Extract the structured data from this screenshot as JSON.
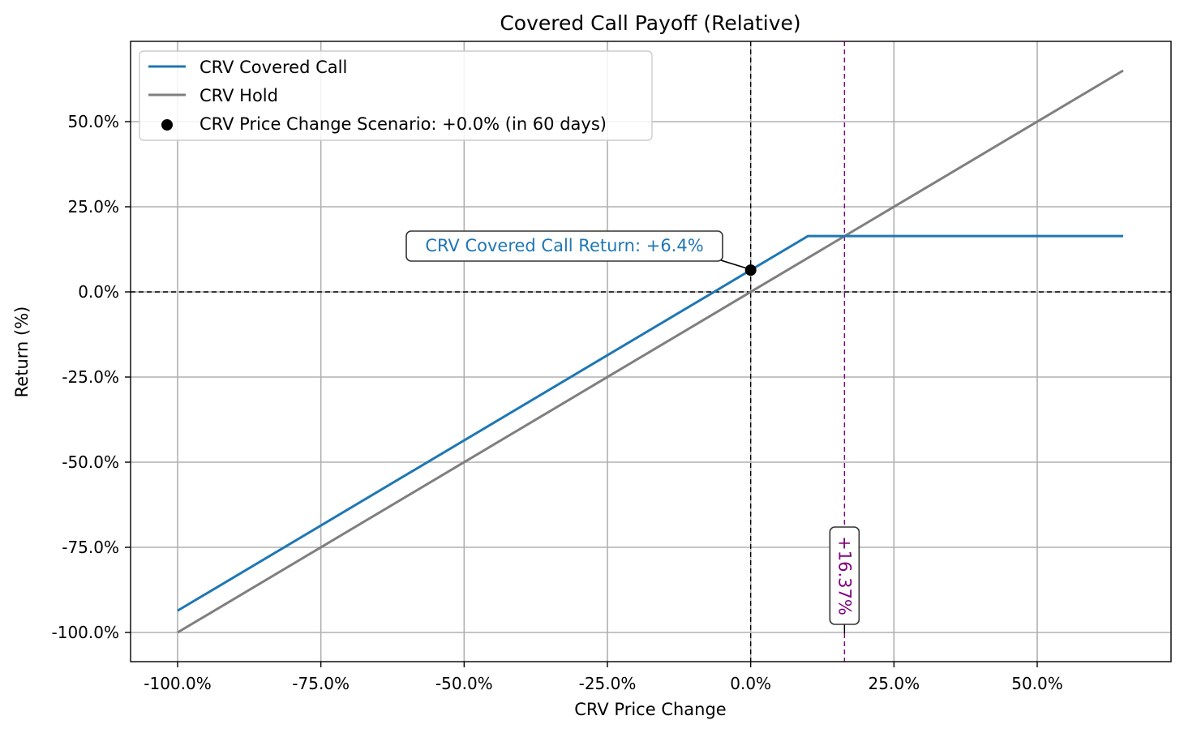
{
  "chart_data": {
    "type": "line",
    "title": "Covered Call Payoff (Relative)",
    "xlabel": "CRV Price Change",
    "ylabel": "Return (%)",
    "xlim": [
      -108,
      73
    ],
    "ylim": [
      -108,
      73
    ],
    "x_ticks": [
      -100,
      -75,
      -50,
      -25,
      0,
      25,
      50
    ],
    "x_tick_labels": [
      "-100.0%",
      "-75.0%",
      "-50.0%",
      "-25.0%",
      "0.0%",
      "25.0%",
      "50.0%"
    ],
    "y_ticks": [
      -100,
      -75,
      -50,
      -25,
      0,
      25,
      50
    ],
    "y_tick_labels": [
      "-100.0%",
      "-75.0%",
      "-50.0%",
      "-25.0%",
      "0.0%",
      "25.0%",
      "50.0%"
    ],
    "grid": true,
    "legend_position": "top-left",
    "series": [
      {
        "name": "CRV Covered Call",
        "color": "#1f77b4",
        "points": [
          [
            -100,
            -93.6
          ],
          [
            10,
            16.4
          ],
          [
            65,
            16.4
          ]
        ]
      },
      {
        "name": "CRV Hold",
        "color": "#7f7f7f",
        "points": [
          [
            -100,
            -100
          ],
          [
            65,
            65
          ]
        ]
      }
    ],
    "scenario": {
      "name": "CRV Price Change Scenario: +0.0% (in 60 days)",
      "x": 0,
      "y": 6.4,
      "color": "#000000"
    },
    "reference_lines": {
      "horizontal_y": 0,
      "vertical_x": 0,
      "breakeven_x": 16.37,
      "breakeven_color": "#800080"
    },
    "annotations": {
      "return_label": "CRV Covered Call Return: +6.4%",
      "return_color": "#1f77b4",
      "breakeven_label": "+16.37%"
    }
  }
}
